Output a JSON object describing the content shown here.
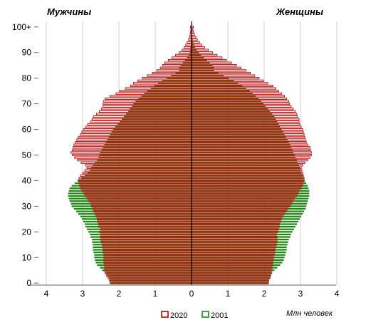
{
  "chart_data": {
    "type": "bar",
    "subtype": "population-pyramid",
    "left_title": "Мужчины",
    "right_title": "Женщины",
    "units_label": "Млн человек",
    "x_ticks": [
      "4",
      "3",
      "2",
      "1",
      "0",
      "1",
      "2",
      "3",
      "4"
    ],
    "y_ticks": [
      "0",
      "10",
      "20",
      "30",
      "40",
      "50",
      "60",
      "70",
      "80",
      "90",
      "100+"
    ],
    "xlim": [
      -4,
      4
    ],
    "grid": "vertical",
    "legend_position": "bottom",
    "legend": [
      {
        "label": "2020",
        "color": "#c00000",
        "fill": "#ffffff",
        "style": "outline"
      },
      {
        "label": "2001",
        "color": "#1a8a10",
        "fill": "#1a8a10",
        "style": "solid"
      }
    ],
    "overlap_color": "#8b3a12",
    "series": [
      {
        "name": "2020",
        "male": [
          2.22,
          2.26,
          2.3,
          2.34,
          2.38,
          2.4,
          2.4,
          2.4,
          2.42,
          2.42,
          2.42,
          2.42,
          2.44,
          2.44,
          2.46,
          2.46,
          2.5,
          2.5,
          2.52,
          2.5,
          2.54,
          2.5,
          2.56,
          2.56,
          2.6,
          2.6,
          2.64,
          2.66,
          2.7,
          2.72,
          2.76,
          2.78,
          2.84,
          2.88,
          2.94,
          2.96,
          3.02,
          3.06,
          3.08,
          3.1,
          3.12,
          3.1,
          3.06,
          3.0,
          2.94,
          2.88,
          2.92,
          3.04,
          3.14,
          3.22,
          3.28,
          3.32,
          3.28,
          3.26,
          3.24,
          3.2,
          3.16,
          3.12,
          3.06,
          3.02,
          2.98,
          2.92,
          2.86,
          2.78,
          2.74,
          2.7,
          2.62,
          2.54,
          2.48,
          2.44,
          2.44,
          2.42,
          2.38,
          2.24,
          2.08,
          1.98,
          1.82,
          1.68,
          1.6,
          1.48,
          1.36,
          1.22,
          1.08,
          0.96,
          0.86,
          0.8,
          0.74,
          0.64,
          0.54,
          0.44,
          0.34,
          0.26,
          0.2,
          0.16,
          0.12,
          0.08,
          0.06,
          0.04,
          0.03,
          0.02,
          0.03
        ],
        "female": [
          2.12,
          2.12,
          2.16,
          2.18,
          2.2,
          2.2,
          2.22,
          2.24,
          2.24,
          2.26,
          2.26,
          2.28,
          2.3,
          2.3,
          2.32,
          2.34,
          2.36,
          2.36,
          2.36,
          2.34,
          2.38,
          2.4,
          2.42,
          2.42,
          2.46,
          2.48,
          2.52,
          2.56,
          2.62,
          2.66,
          2.72,
          2.76,
          2.8,
          2.84,
          2.9,
          2.94,
          2.96,
          3.02,
          3.06,
          3.08,
          3.1,
          3.1,
          3.08,
          3.06,
          3.04,
          3.02,
          3.06,
          3.12,
          3.2,
          3.26,
          3.3,
          3.3,
          3.28,
          3.26,
          3.2,
          3.16,
          3.14,
          3.12,
          3.1,
          3.08,
          3.06,
          3.02,
          2.98,
          2.96,
          2.96,
          2.92,
          2.9,
          2.86,
          2.8,
          2.74,
          2.7,
          2.68,
          2.62,
          2.56,
          2.48,
          2.4,
          2.32,
          2.24,
          2.1,
          1.98,
          1.86,
          1.74,
          1.62,
          1.5,
          1.36,
          1.24,
          1.1,
          0.96,
          0.84,
          0.7,
          0.58,
          0.46,
          0.36,
          0.28,
          0.22,
          0.16,
          0.12,
          0.08,
          0.06,
          0.04,
          0.05
        ]
      },
      {
        "name": "2001",
        "male": [
          2.26,
          2.26,
          2.28,
          2.32,
          2.36,
          2.46,
          2.52,
          2.6,
          2.64,
          2.66,
          2.68,
          2.68,
          2.7,
          2.72,
          2.72,
          2.72,
          2.74,
          2.74,
          2.78,
          2.8,
          2.84,
          2.88,
          2.92,
          2.94,
          2.98,
          3.02,
          3.06,
          3.12,
          3.18,
          3.24,
          3.3,
          3.32,
          3.36,
          3.38,
          3.4,
          3.4,
          3.38,
          3.36,
          3.3,
          3.22,
          3.14,
          3.04,
          2.94,
          2.86,
          2.8,
          2.76,
          2.72,
          2.66,
          2.6,
          2.56,
          2.54,
          2.52,
          2.48,
          2.44,
          2.4,
          2.36,
          2.32,
          2.28,
          2.24,
          2.2,
          2.16,
          2.1,
          2.04,
          1.98,
          1.92,
          1.86,
          1.8,
          1.74,
          1.7,
          1.64,
          1.6,
          1.54,
          1.46,
          1.38,
          1.3,
          1.22,
          1.12,
          1.02,
          0.92,
          0.8,
          0.68,
          0.56,
          0.44,
          0.34,
          0.34,
          0.3,
          0.24,
          0.18,
          0.12,
          0.08,
          0.05,
          0.04,
          0.03,
          0.02,
          0.02,
          0.01,
          0.01,
          0.01,
          0.0,
          0.0,
          0.0
        ],
        "female": [
          2.12,
          2.14,
          2.16,
          2.18,
          2.22,
          2.28,
          2.36,
          2.44,
          2.5,
          2.54,
          2.56,
          2.58,
          2.6,
          2.62,
          2.62,
          2.64,
          2.66,
          2.68,
          2.72,
          2.74,
          2.78,
          2.82,
          2.86,
          2.9,
          2.94,
          2.98,
          3.02,
          3.06,
          3.1,
          3.14,
          3.16,
          3.18,
          3.2,
          3.22,
          3.24,
          3.24,
          3.24,
          3.22,
          3.2,
          3.16,
          3.12,
          3.08,
          3.06,
          3.02,
          3.0,
          2.98,
          2.96,
          2.92,
          2.9,
          2.86,
          2.84,
          2.8,
          2.78,
          2.74,
          2.72,
          2.68,
          2.64,
          2.6,
          2.56,
          2.52,
          2.48,
          2.44,
          2.4,
          2.36,
          2.32,
          2.28,
          2.22,
          2.16,
          2.1,
          2.04,
          1.98,
          1.92,
          1.84,
          1.76,
          1.68,
          1.6,
          1.5,
          1.4,
          1.28,
          1.16,
          1.02,
          0.88,
          0.74,
          0.62,
          0.62,
          0.58,
          0.5,
          0.42,
          0.34,
          0.26,
          0.2,
          0.14,
          0.1,
          0.07,
          0.05,
          0.03,
          0.02,
          0.01,
          0.0,
          0.0,
          0.0
        ]
      }
    ]
  }
}
